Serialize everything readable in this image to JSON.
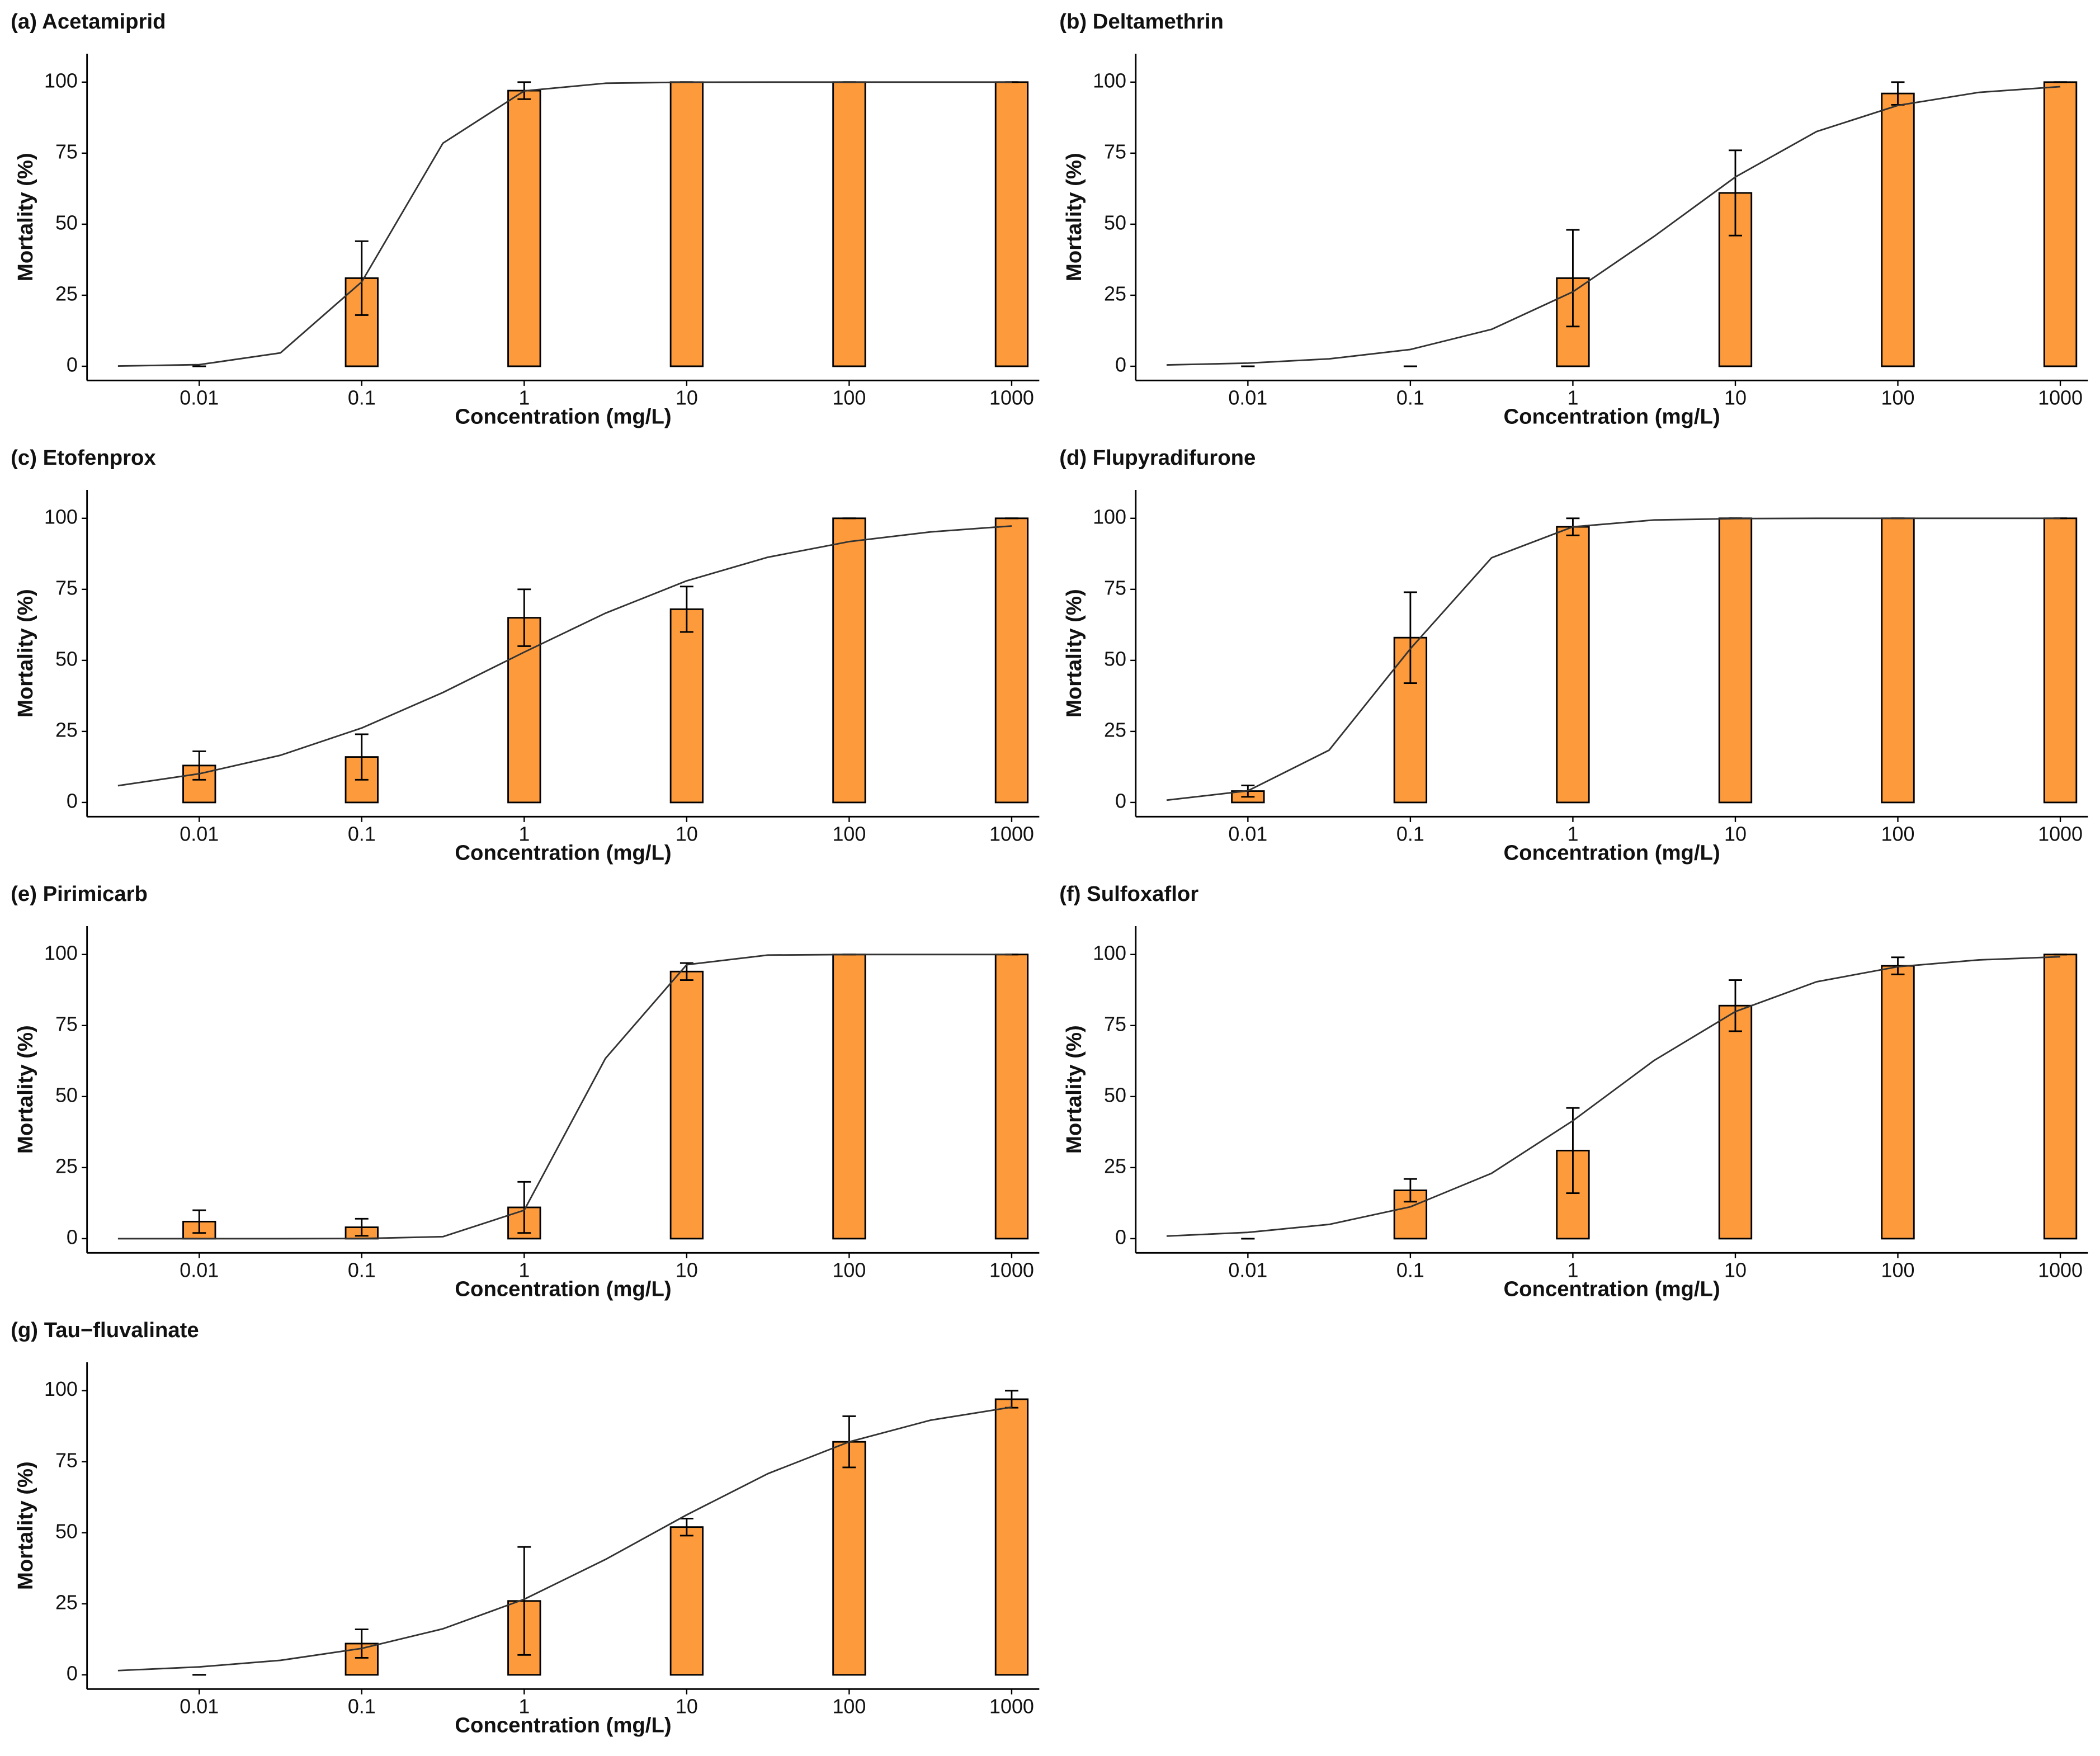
{
  "chart_data": [
    {
      "type": "bar",
      "title": "(a) Acetamiprid",
      "xlabel": "Concentration (mg/L)",
      "ylabel": "Mortality (%)",
      "xscale": "log",
      "x": [
        0.01,
        0.1,
        1,
        10,
        100,
        1000
      ],
      "values": [
        0,
        31,
        97,
        100,
        100,
        100
      ],
      "errors": [
        0,
        13,
        3,
        0,
        0,
        0
      ],
      "color": "#fd9b3c",
      "curve": {
        "color": "#333333",
        "x": [
          0.00316,
          0.01,
          0.0316,
          0.1,
          0.316,
          1,
          3.16,
          10,
          31.6,
          100,
          316,
          1000
        ],
        "values": [
          0.06,
          0.56,
          4.7,
          29.7,
          78.5,
          96.9,
          99.6,
          99.97,
          100,
          100,
          100,
          100
        ]
      },
      "xlim": [
        0.00204,
        1479
      ],
      "ylim": [
        -5,
        110
      ],
      "xticks": [
        0.01,
        0.1,
        1,
        10,
        100,
        1000
      ],
      "yticks": [
        0,
        25,
        50,
        75,
        100
      ]
    },
    {
      "type": "bar",
      "title": "(b) Deltamethrin",
      "xlabel": "Concentration (mg/L)",
      "ylabel": "Mortality (%)",
      "xscale": "log",
      "x": [
        0.01,
        0.1,
        1,
        10,
        100,
        1000
      ],
      "values": [
        0,
        0,
        31,
        61,
        96,
        100
      ],
      "errors": [
        0,
        0,
        17,
        15,
        4,
        0
      ],
      "color": "#fd9b3c",
      "curve": {
        "color": "#333333",
        "x": [
          0.00316,
          0.01,
          0.0316,
          0.1,
          0.316,
          1,
          3.16,
          10,
          31.6,
          100,
          316,
          1000
        ],
        "values": [
          0.47,
          1.1,
          2.6,
          5.9,
          13.0,
          26.2,
          45.7,
          66.6,
          82.6,
          91.8,
          96.4,
          98.4
        ]
      },
      "xlim": [
        0.00204,
        1479
      ],
      "ylim": [
        -5,
        110
      ],
      "xticks": [
        0.01,
        0.1,
        1,
        10,
        100,
        1000
      ],
      "yticks": [
        0,
        25,
        50,
        75,
        100
      ]
    },
    {
      "type": "bar",
      "title": "(c) Etofenprox",
      "xlabel": "Concentration (mg/L)",
      "ylabel": "Mortality (%)",
      "xscale": "log",
      "x": [
        0.01,
        0.1,
        1,
        10,
        100,
        1000
      ],
      "values": [
        13,
        16,
        65,
        68,
        100,
        100
      ],
      "errors": [
        5,
        8,
        10,
        8,
        0,
        0
      ],
      "color": "#fd9b3c",
      "curve": {
        "color": "#333333",
        "x": [
          0.00316,
          0.01,
          0.0316,
          0.1,
          0.316,
          1,
          3.16,
          10,
          31.6,
          100,
          316,
          1000
        ],
        "values": [
          5.9,
          10.1,
          16.6,
          26.2,
          38.7,
          52.9,
          66.6,
          78.0,
          86.3,
          91.8,
          95.2,
          97.3
        ]
      },
      "xlim": [
        0.00204,
        1479
      ],
      "ylim": [
        -5,
        110
      ],
      "xticks": [
        0.01,
        0.1,
        1,
        10,
        100,
        1000
      ],
      "yticks": [
        0,
        25,
        50,
        75,
        100
      ]
    },
    {
      "type": "bar",
      "title": "(d) Flupyradifurone",
      "xlabel": "Concentration (mg/L)",
      "ylabel": "Mortality (%)",
      "xscale": "log",
      "x": [
        0.01,
        0.1,
        1,
        10,
        100,
        1000
      ],
      "values": [
        4,
        58,
        97,
        100,
        100,
        100
      ],
      "errors": [
        2,
        16,
        3,
        0,
        0,
        0
      ],
      "color": "#fd9b3c",
      "curve": {
        "color": "#333333",
        "x": [
          0.00316,
          0.01,
          0.0316,
          0.1,
          0.316,
          1,
          3.16,
          10,
          31.6,
          100,
          316,
          1000
        ],
        "values": [
          0.8,
          4.1,
          18.4,
          54.1,
          86.1,
          97.0,
          99.4,
          99.9,
          100,
          100,
          100,
          100
        ]
      },
      "xlim": [
        0.00204,
        1479
      ],
      "ylim": [
        -5,
        110
      ],
      "xticks": [
        0.01,
        0.1,
        1,
        10,
        100,
        1000
      ],
      "yticks": [
        0,
        25,
        50,
        75,
        100
      ]
    },
    {
      "type": "bar",
      "title": "(e) Pirimicarb",
      "xlabel": "Concentration (mg/L)",
      "ylabel": "Mortality (%)",
      "xscale": "log",
      "x": [
        0.01,
        0.1,
        1,
        10,
        100,
        1000
      ],
      "values": [
        6,
        4,
        11,
        94,
        100,
        100
      ],
      "errors": [
        4,
        3,
        9,
        3,
        0,
        0
      ],
      "color": "#fd9b3c",
      "curve": {
        "color": "#333333",
        "x": [
          0.00316,
          0.01,
          0.0316,
          0.1,
          0.316,
          1,
          3.16,
          10,
          31.6,
          100,
          316,
          1000
        ],
        "values": [
          0,
          0,
          0,
          0.04,
          0.7,
          10.0,
          63.4,
          96.4,
          99.8,
          100,
          100,
          100
        ]
      },
      "xlim": [
        0.00204,
        1479
      ],
      "ylim": [
        -5,
        110
      ],
      "xticks": [
        0.01,
        0.1,
        1,
        10,
        100,
        1000
      ],
      "yticks": [
        0,
        25,
        50,
        75,
        100
      ]
    },
    {
      "type": "bar",
      "title": "(f) Sulfoxaflor",
      "xlabel": "Concentration (mg/L)",
      "ylabel": "Mortality (%)",
      "xscale": "log",
      "x": [
        0.01,
        0.1,
        1,
        10,
        100,
        1000
      ],
      "values": [
        0,
        17,
        31,
        82,
        96,
        100
      ],
      "errors": [
        0,
        4,
        15,
        9,
        3,
        0
      ],
      "color": "#fd9b3c",
      "curve": {
        "color": "#333333",
        "x": [
          0.00316,
          0.01,
          0.0316,
          0.1,
          0.316,
          1,
          3.16,
          10,
          31.6,
          100,
          316,
          1000
        ],
        "values": [
          0.9,
          2.2,
          5.0,
          11.2,
          23.0,
          41.5,
          62.7,
          79.9,
          90.4,
          95.7,
          98.1,
          99.2
        ]
      },
      "xlim": [
        0.00204,
        1479
      ],
      "ylim": [
        -5,
        110
      ],
      "xticks": [
        0.01,
        0.1,
        1,
        10,
        100,
        1000
      ],
      "yticks": [
        0,
        25,
        50,
        75,
        100
      ]
    },
    {
      "type": "bar",
      "title": "(g) Tau−fluvalinate",
      "xlabel": "Concentration (mg/L)",
      "ylabel": "Mortality (%)",
      "xscale": "log",
      "x": [
        0.01,
        0.1,
        1,
        10,
        100,
        1000
      ],
      "values": [
        0,
        11,
        26,
        52,
        82,
        97
      ],
      "errors": [
        0,
        5,
        19,
        3,
        9,
        3
      ],
      "color": "#fd9b3c",
      "curve": {
        "color": "#333333",
        "x": [
          0.00316,
          0.01,
          0.0316,
          0.1,
          0.316,
          1,
          3.16,
          10,
          31.6,
          100,
          316,
          1000
        ],
        "values": [
          1.5,
          2.8,
          5.1,
          9.3,
          16.2,
          26.6,
          40.6,
          56.3,
          70.8,
          82.0,
          89.6,
          94.2
        ]
      },
      "xlim": [
        0.00204,
        1479
      ],
      "ylim": [
        -5,
        110
      ],
      "xticks": [
        0.01,
        0.1,
        1,
        10,
        100,
        1000
      ],
      "yticks": [
        0,
        25,
        50,
        75,
        100
      ]
    }
  ]
}
